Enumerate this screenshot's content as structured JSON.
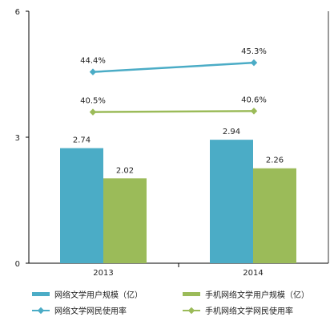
{
  "chart_data": {
    "type": "bar",
    "categories": [
      "2013",
      "2014"
    ],
    "ylim": [
      0,
      6
    ],
    "yticks": [
      "0",
      "3",
      "6"
    ],
    "bar_series": [
      {
        "name": "网络文学用户规模（亿）",
        "color": "#4bacc6",
        "values": [
          2.74,
          2.94
        ],
        "labels": [
          "2.74",
          "2.94"
        ]
      },
      {
        "name": "手机网络文学用户规模（亿）",
        "color": "#9bbb59",
        "values": [
          2.02,
          2.26
        ],
        "labels": [
          "2.02",
          "2.26"
        ]
      }
    ],
    "line_series": [
      {
        "name": "网络文学网民使用率",
        "color": "#4bacc6",
        "values": [
          44.4,
          45.3
        ],
        "labels": [
          "44.4%",
          "45.3%"
        ]
      },
      {
        "name": "手机网络文学网民使用率",
        "color": "#9bbb59",
        "values": [
          40.5,
          40.6
        ],
        "labels": [
          "40.5%",
          "40.6%"
        ]
      }
    ],
    "legend_position": "bottom",
    "grid": false
  }
}
